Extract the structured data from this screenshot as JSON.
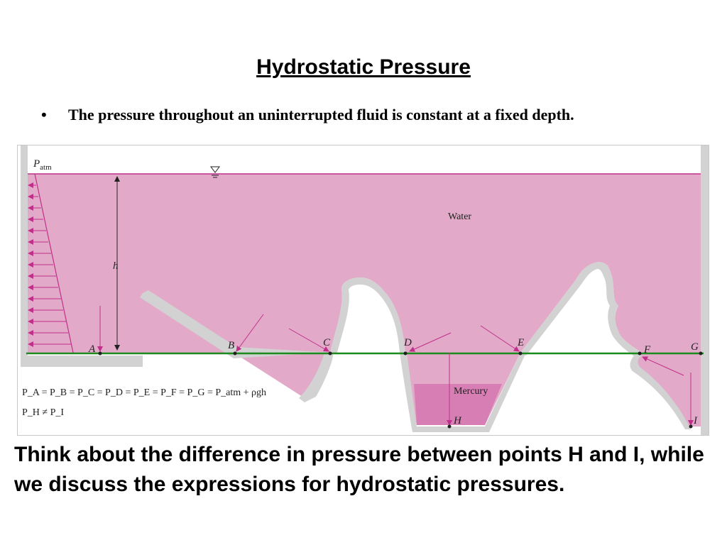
{
  "title": "Hydrostatic Pressure",
  "bullet": {
    "symbol": "•",
    "text": "The pressure throughout an uninterrupted fluid is constant at a fixed depth."
  },
  "figure": {
    "labels": {
      "patm_main": "P",
      "patm_sub": "atm",
      "h": "h",
      "water": "Water",
      "mercury": "Mercury"
    },
    "points": [
      "A",
      "B",
      "C",
      "D",
      "E",
      "F",
      "G",
      "H",
      "I"
    ],
    "equation1": "P_A = P_B = P_C = P_D = P_E = P_F = P_G = P_atm + ρgh",
    "equation2": "P_H ≠ P_I",
    "colors": {
      "water": "#e2aac8",
      "mercury": "#d77fb4",
      "wall": "#d2d2d2",
      "surface_line": "#c0308a",
      "level_line": "#1d8a1d",
      "arrows": "#c0308a"
    }
  },
  "footer_text": "Think about the difference in pressure between points H and I, while we discuss the expressions for hydrostatic pressures."
}
